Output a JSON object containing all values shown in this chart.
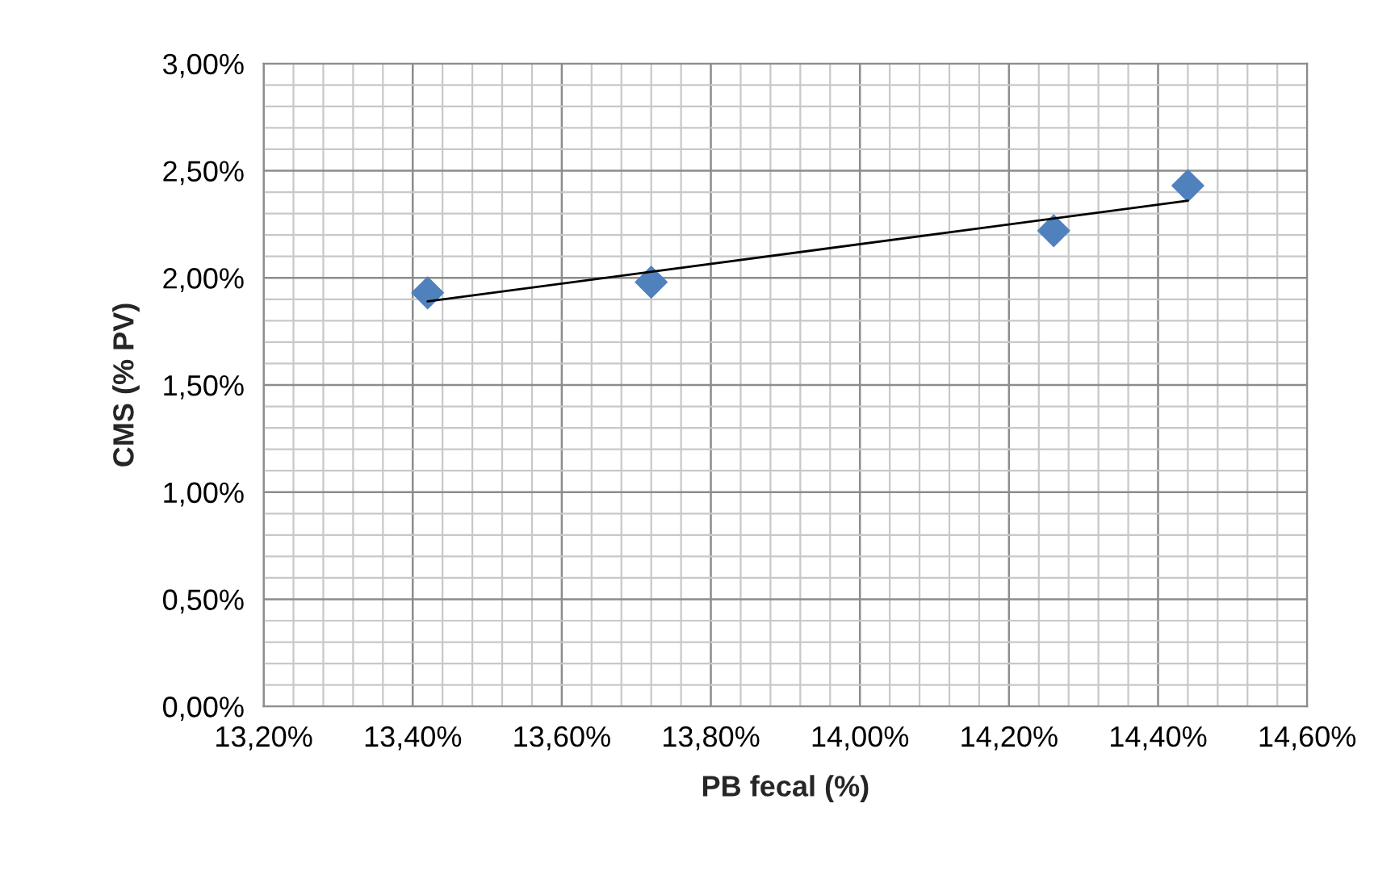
{
  "chart_data": {
    "type": "scatter",
    "xlabel": "PB fecal (%)",
    "ylabel": "CMS (% PV)",
    "series": [
      {
        "color": "#4f81bd",
        "marker": "diamond",
        "x": [
          13.42,
          13.72,
          14.26,
          14.44
        ],
        "values": [
          1.93,
          1.98,
          2.22,
          2.43
        ]
      },
      {
        "type": "line",
        "color": "#000000",
        "marker": "none",
        "x": [
          13.42,
          14.44
        ],
        "values": [
          1.89,
          2.36
        ]
      }
    ],
    "xlim": [
      13.2,
      14.6
    ],
    "xticks": [
      {
        "value": 13.2,
        "label": "13,20%"
      },
      {
        "value": 13.4,
        "label": "13,40%"
      },
      {
        "value": 13.6,
        "label": "13,60%"
      },
      {
        "value": 13.8,
        "label": "13,80%"
      },
      {
        "value": 14.0,
        "label": "14,00%"
      },
      {
        "value": 14.2,
        "label": "14,20%"
      },
      {
        "value": 14.4,
        "label": "14,40%"
      },
      {
        "value": 14.6,
        "label": "14,60%"
      }
    ],
    "ylim": [
      0,
      3
    ],
    "yticks": [
      {
        "value": 0,
        "label": "0,00%"
      },
      {
        "value": 0.5,
        "label": "0,50%"
      },
      {
        "value": 1.0,
        "label": "1,00%"
      },
      {
        "value": 1.5,
        "label": "1,50%"
      },
      {
        "value": 2.0,
        "label": "2,00%"
      },
      {
        "value": 2.5,
        "label": "2,50%"
      },
      {
        "value": 3.0,
        "label": "3,00%"
      }
    ],
    "grid": true,
    "legend": false
  }
}
